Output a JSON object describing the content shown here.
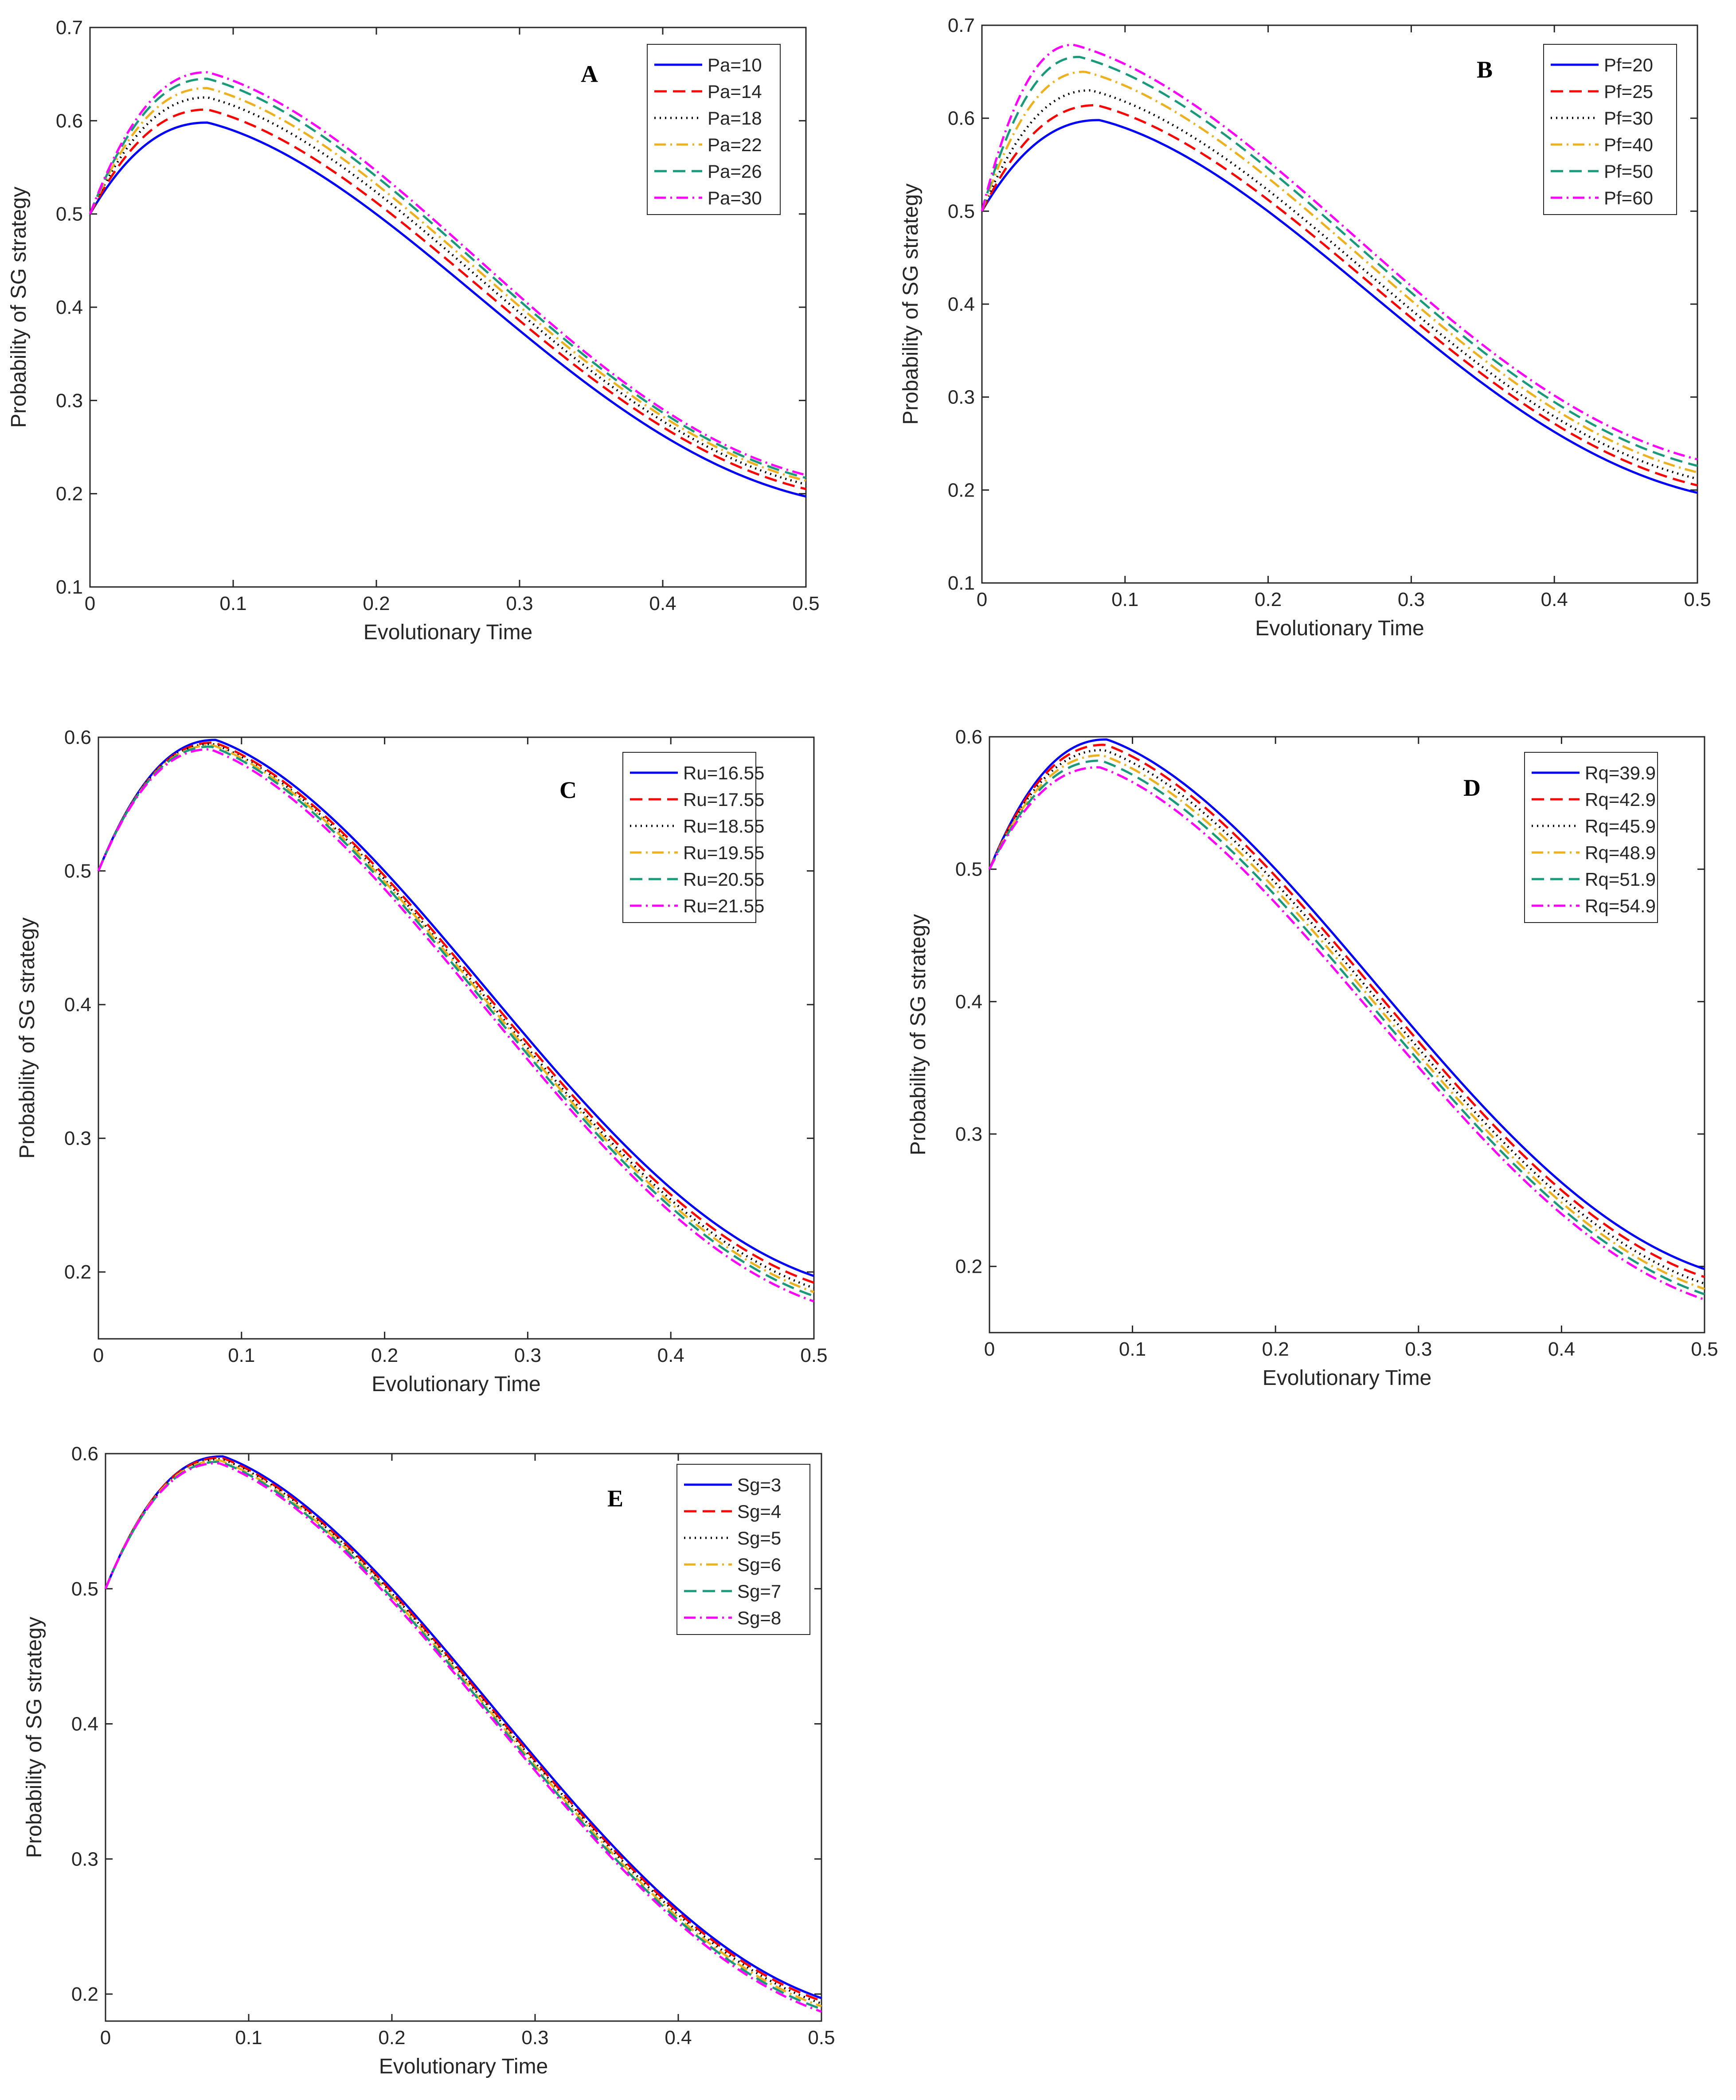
{
  "chart_data": [
    {
      "panel_label": "A",
      "type": "line",
      "xlabel": "Evolutionary Time",
      "ylabel": "Probability of SG strategy",
      "xlim": [
        0,
        0.5
      ],
      "ylim": [
        0.1,
        0.7
      ],
      "xticks": [
        "0",
        "0.1",
        "0.2",
        "0.3",
        "0.4",
        "0.5"
      ],
      "yticks": [
        "0.1",
        "0.2",
        "0.3",
        "0.4",
        "0.5",
        "0.6",
        "0.7"
      ],
      "legend_position": "top-right",
      "series": [
        {
          "name": "Pa=10",
          "color": "#0000ff",
          "dash": "solid",
          "peak_x": 0.082,
          "peak_y": 0.598,
          "end_y": 0.197
        },
        {
          "name": "Pa=14",
          "color": "#ff0000",
          "dash": "dashed",
          "peak_x": 0.082,
          "peak_y": 0.612,
          "end_y": 0.205
        },
        {
          "name": "Pa=18",
          "color": "#000000",
          "dash": "dotted",
          "peak_x": 0.082,
          "peak_y": 0.625,
          "end_y": 0.21
        },
        {
          "name": "Pa=22",
          "color": "#edb120",
          "dash": "dashdot",
          "peak_x": 0.082,
          "peak_y": 0.635,
          "end_y": 0.214
        },
        {
          "name": "Pa=26",
          "color": "#1a9a7a",
          "dash": "dashed",
          "peak_x": 0.082,
          "peak_y": 0.645,
          "end_y": 0.217
        },
        {
          "name": "Pa=30",
          "color": "#ff00ff",
          "dash": "dashdot",
          "peak_x": 0.082,
          "peak_y": 0.652,
          "end_y": 0.22
        }
      ]
    },
    {
      "panel_label": "B",
      "type": "line",
      "xlabel": "Evolutionary Time",
      "ylabel": "Probability of SG strategy",
      "xlim": [
        0,
        0.5
      ],
      "ylim": [
        0.1,
        0.7
      ],
      "xticks": [
        "0",
        "0.1",
        "0.2",
        "0.3",
        "0.4",
        "0.5"
      ],
      "yticks": [
        "0.1",
        "0.2",
        "0.3",
        "0.4",
        "0.5",
        "0.6",
        "0.7"
      ],
      "legend_position": "top-right",
      "series": [
        {
          "name": "Pf=20",
          "color": "#0000ff",
          "dash": "solid",
          "peak_x": 0.082,
          "peak_y": 0.598,
          "end_y": 0.197
        },
        {
          "name": "Pf=25",
          "color": "#ff0000",
          "dash": "dashed",
          "peak_x": 0.08,
          "peak_y": 0.614,
          "end_y": 0.205
        },
        {
          "name": "Pf=30",
          "color": "#000000",
          "dash": "dotted",
          "peak_x": 0.076,
          "peak_y": 0.63,
          "end_y": 0.212
        },
        {
          "name": "Pf=40",
          "color": "#edb120",
          "dash": "dashdot",
          "peak_x": 0.072,
          "peak_y": 0.65,
          "end_y": 0.219
        },
        {
          "name": "Pf=50",
          "color": "#1a9a7a",
          "dash": "dashed",
          "peak_x": 0.068,
          "peak_y": 0.666,
          "end_y": 0.226
        },
        {
          "name": "Pf=60",
          "color": "#ff00ff",
          "dash": "dashdot",
          "peak_x": 0.064,
          "peak_y": 0.679,
          "end_y": 0.233
        }
      ]
    },
    {
      "panel_label": "C",
      "type": "line",
      "xlabel": "Evolutionary Time",
      "ylabel": "Probability of SG strategy",
      "xlim": [
        0,
        0.5
      ],
      "ylim": [
        0.15,
        0.6
      ],
      "xticks": [
        "0",
        "0.1",
        "0.2",
        "0.3",
        "0.4",
        "0.5"
      ],
      "yticks": [
        "0.2",
        "0.3",
        "0.4",
        "0.5",
        "0.6"
      ],
      "legend_position": "top-right",
      "series": [
        {
          "name": "Ru=16.55",
          "color": "#0000ff",
          "dash": "solid",
          "peak_x": 0.082,
          "peak_y": 0.598,
          "end_y": 0.197
        },
        {
          "name": "Ru=17.55",
          "color": "#ff0000",
          "dash": "dashed",
          "peak_x": 0.081,
          "peak_y": 0.596,
          "end_y": 0.192
        },
        {
          "name": "Ru=18.55",
          "color": "#000000",
          "dash": "dotted",
          "peak_x": 0.08,
          "peak_y": 0.595,
          "end_y": 0.188
        },
        {
          "name": "Ru=19.55",
          "color": "#edb120",
          "dash": "dashdot",
          "peak_x": 0.08,
          "peak_y": 0.594,
          "end_y": 0.185
        },
        {
          "name": "Ru=20.55",
          "color": "#1a9a7a",
          "dash": "dashed",
          "peak_x": 0.079,
          "peak_y": 0.593,
          "end_y": 0.182
        },
        {
          "name": "Ru=21.55",
          "color": "#ff00ff",
          "dash": "dashdot",
          "peak_x": 0.078,
          "peak_y": 0.591,
          "end_y": 0.178
        }
      ]
    },
    {
      "panel_label": "D",
      "type": "line",
      "xlabel": "Evolutionary Time",
      "ylabel": "Probability of SG strategy",
      "xlim": [
        0,
        0.5
      ],
      "ylim": [
        0.15,
        0.6
      ],
      "xticks": [
        "0",
        "0.1",
        "0.2",
        "0.3",
        "0.4",
        "0.5"
      ],
      "yticks": [
        "0.2",
        "0.3",
        "0.4",
        "0.5",
        "0.6"
      ],
      "legend_position": "top-right",
      "series": [
        {
          "name": "Rq=39.9",
          "color": "#0000ff",
          "dash": "solid",
          "peak_x": 0.082,
          "peak_y": 0.598,
          "end_y": 0.198
        },
        {
          "name": "Rq=42.9",
          "color": "#ff0000",
          "dash": "dashed",
          "peak_x": 0.081,
          "peak_y": 0.594,
          "end_y": 0.192
        },
        {
          "name": "Rq=45.9",
          "color": "#000000",
          "dash": "dotted",
          "peak_x": 0.08,
          "peak_y": 0.59,
          "end_y": 0.187
        },
        {
          "name": "Rq=48.9",
          "color": "#edb120",
          "dash": "dashdot",
          "peak_x": 0.079,
          "peak_y": 0.586,
          "end_y": 0.183
        },
        {
          "name": "Rq=51.9",
          "color": "#1a9a7a",
          "dash": "dashed",
          "peak_x": 0.078,
          "peak_y": 0.582,
          "end_y": 0.179
        },
        {
          "name": "Rq=54.9",
          "color": "#ff00ff",
          "dash": "dashdot",
          "peak_x": 0.077,
          "peak_y": 0.577,
          "end_y": 0.175
        }
      ]
    },
    {
      "panel_label": "E",
      "type": "line",
      "xlabel": "Evolutionary Time",
      "ylabel": "Probability of SG strategy",
      "xlim": [
        0,
        0.5
      ],
      "ylim": [
        0.18,
        0.6
      ],
      "xticks": [
        "0",
        "0.1",
        "0.2",
        "0.3",
        "0.4",
        "0.5"
      ],
      "yticks": [
        "0.2",
        "0.3",
        "0.4",
        "0.5",
        "0.6"
      ],
      "legend_position": "top-right",
      "series": [
        {
          "name": "Sg=3",
          "color": "#0000ff",
          "dash": "solid",
          "peak_x": 0.082,
          "peak_y": 0.598,
          "end_y": 0.197
        },
        {
          "name": "Sg=4",
          "color": "#ff0000",
          "dash": "dashed",
          "peak_x": 0.081,
          "peak_y": 0.597,
          "end_y": 0.195
        },
        {
          "name": "Sg=5",
          "color": "#000000",
          "dash": "dotted",
          "peak_x": 0.081,
          "peak_y": 0.596,
          "end_y": 0.193
        },
        {
          "name": "Sg=6",
          "color": "#edb120",
          "dash": "dashdot",
          "peak_x": 0.08,
          "peak_y": 0.595,
          "end_y": 0.191
        },
        {
          "name": "Sg=7",
          "color": "#1a9a7a",
          "dash": "dashed",
          "peak_x": 0.08,
          "peak_y": 0.594,
          "end_y": 0.189
        },
        {
          "name": "Sg=8",
          "color": "#ff00ff",
          "dash": "dashdot",
          "peak_x": 0.079,
          "peak_y": 0.593,
          "end_y": 0.187
        }
      ]
    }
  ]
}
